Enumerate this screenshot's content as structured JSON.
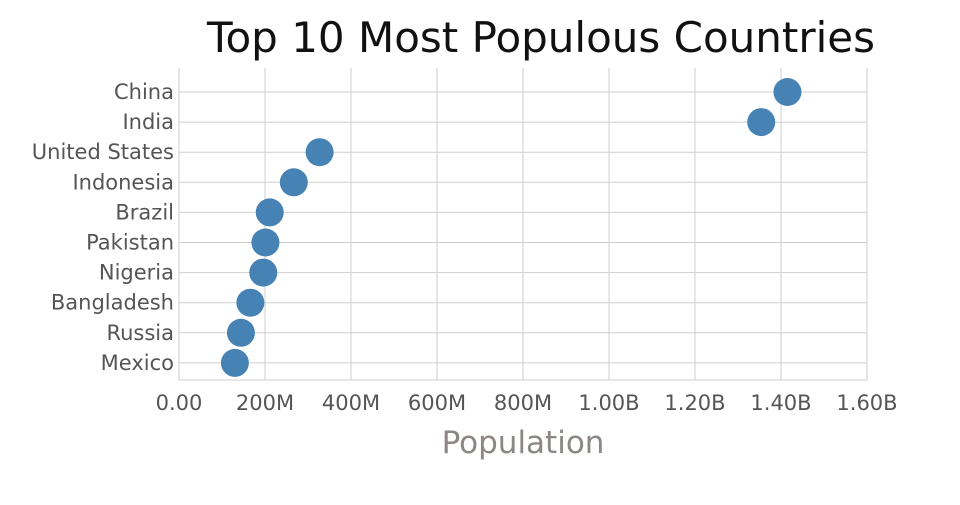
{
  "chart_data": {
    "type": "scatter",
    "title": "Top 10 Most Populous Countries",
    "xlabel": "Population",
    "ylabel": "",
    "categories": [
      "China",
      "India",
      "United States",
      "Indonesia",
      "Brazil",
      "Pakistan",
      "Nigeria",
      "Bangladesh",
      "Russia",
      "Mexico"
    ],
    "values": [
      1415000000,
      1354000000,
      327000000,
      267000000,
      211000000,
      201000000,
      196000000,
      166000000,
      144000000,
      130000000
    ],
    "xlim": [
      0,
      1600000000
    ],
    "xticks": [
      0,
      200000000,
      400000000,
      600000000,
      800000000,
      1000000000,
      1200000000,
      1400000000,
      1600000000
    ],
    "xtick_labels": [
      "0.00",
      "200M",
      "400M",
      "600M",
      "800M",
      "1.00B",
      "1.20B",
      "1.40B",
      "1.60B"
    ],
    "marker_color": "#4682b4",
    "grid": true,
    "legend": "none"
  }
}
